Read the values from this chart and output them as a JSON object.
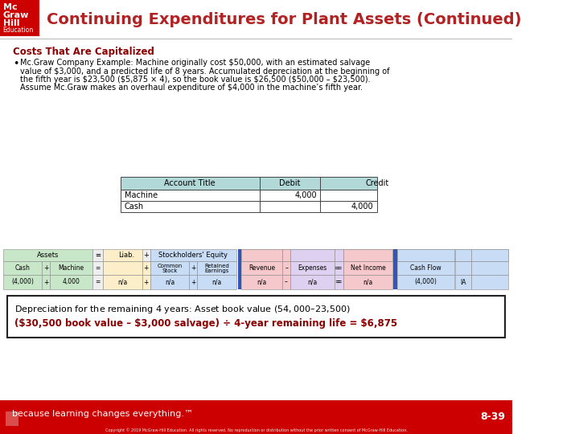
{
  "title": "Continuing Expenditures for Plant Assets (Continued)",
  "title_color": "#B22222",
  "header_bg": "#CC0000",
  "section_title": "Costs That Are Capitalized",
  "section_title_color": "#8B0000",
  "bullet_lines": [
    "Mc.Graw Company Example: Machine originally cost $50,000, with an estimated salvage",
    "value of $3,000, and a predicted life of 8 years. Accumulated depreciation at the beginning of",
    "the fifth year is $23,500 ($5,875 × 4), so the book value is $26,500 ($50,000 – $23,500).",
    "Assume Mc.Graw makes an overhaul expenditure of $4,000 in the machine’s fifth year."
  ],
  "journal_header": [
    "Account Title",
    "Debit",
    "Credit"
  ],
  "journal_rows": [
    [
      "Machine",
      "4,000",
      ""
    ],
    [
      "Cash",
      "",
      "4,000"
    ]
  ],
  "table_header_bg": "#B2D8D8",
  "eq_colors": {
    "assets_bg": "#c8e6c8",
    "liab_bg": "#fceec8",
    "se_bg": "#c8ddf5",
    "rev_bg": "#f5c8cc",
    "exp_bg": "#ddd0f0",
    "ni_bg": "#f5c8cc",
    "cf_bg": "#c8ddf5",
    "divider_color": "#3355BB"
  },
  "box_text_line1": "Depreciation for the remaining 4 years: Asset book value ($54,000 – $23,500)",
  "box_text_line2": "($30,500 book value – $3,000 salvage) ÷ 4-year remaining life = $6,875",
  "box_line2_color": "#8B0000",
  "footer_bg": "#CC0000",
  "footer_text": "because learning changes everything.™",
  "page_num": "8-39",
  "copyright": "Copyright © 2019 McGraw-Hill Education. All rights reserved. No reproduction or distribution without the prior written consent of McGraw-Hill Education.",
  "bg_color": "#FFFFFF"
}
